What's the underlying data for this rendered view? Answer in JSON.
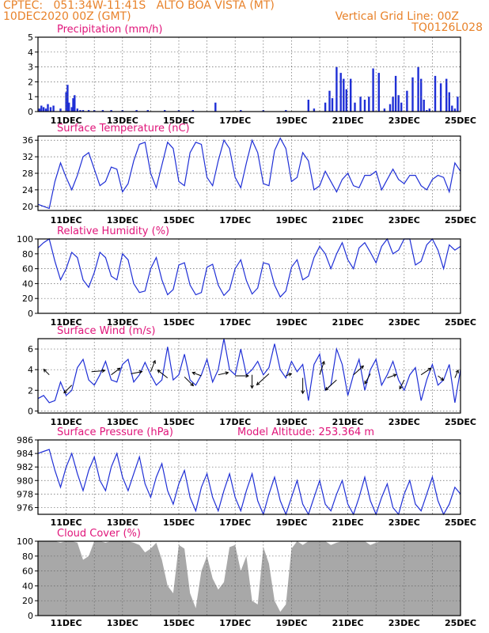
{
  "header": {
    "line1": "CPTEC:   051:34W-11:41S   ALTO BOA VISTA (MT)",
    "line2": "10DEC2020 00Z (GMT)",
    "grid_note": "Vertical Grid Line: 00Z",
    "code": "TQ0126L028"
  },
  "colors": {
    "header": "#e8822a",
    "title": "#e0157a",
    "line": "#1f2fd6",
    "bar": "#1f2fd6",
    "fill": "#a8a8a8",
    "grid": "#666666",
    "arrow": "#000000"
  },
  "x_ticks": [
    "11DEC",
    "13DEC",
    "15DEC",
    "17DEC",
    "19DEC",
    "21DEC",
    "23DEC",
    "25DEC"
  ],
  "chart_data": [
    {
      "type": "bar",
      "title": "Precipitation (mm/h)",
      "ylim": [
        0,
        5
      ],
      "yticks": [
        "0",
        "1",
        "2",
        "3",
        "4",
        "5"
      ],
      "xlim": [
        0,
        15
      ],
      "x": [
        0.05,
        0.12,
        0.2,
        0.28,
        0.35,
        0.45,
        0.55,
        0.8,
        1.0,
        1.05,
        1.1,
        1.2,
        1.25,
        1.3,
        1.4,
        1.5,
        1.6,
        1.8,
        2.0,
        2.3,
        2.6,
        3.0,
        3.5,
        3.9,
        4.5,
        5.0,
        5.5,
        6.3,
        7.2,
        8.0,
        8.8,
        9.6,
        9.8,
        10.2,
        10.35,
        10.45,
        10.6,
        10.75,
        10.85,
        10.95,
        11.1,
        11.25,
        11.45,
        11.6,
        11.75,
        11.9,
        12.1,
        12.3,
        12.5,
        12.6,
        12.7,
        12.8,
        12.9,
        13.1,
        13.3,
        13.5,
        13.6,
        13.7,
        13.8,
        13.9,
        14.1,
        14.3,
        14.5,
        14.6,
        14.7,
        14.8,
        14.9
      ],
      "values": [
        0.2,
        0.4,
        0.3,
        0.2,
        0.5,
        0.3,
        0.4,
        0.2,
        1.3,
        1.8,
        0.6,
        0.3,
        0.9,
        1.1,
        0.2,
        0.1,
        0.1,
        0.1,
        0.1,
        0.1,
        0.1,
        0.1,
        0.1,
        0.1,
        0.1,
        0.1,
        0.1,
        0.6,
        0.1,
        0.1,
        0.1,
        0.8,
        0.2,
        0.6,
        1.4,
        0.9,
        3.0,
        2.6,
        2.2,
        1.5,
        2.2,
        0.6,
        1.0,
        0.8,
        1.0,
        2.9,
        2.6,
        0.2,
        0.5,
        1.0,
        2.4,
        1.1,
        0.6,
        1.4,
        2.3,
        3.0,
        2.2,
        0.8,
        0.1,
        0.2,
        2.4,
        1.9,
        2.2,
        1.3,
        0.4,
        0.2,
        1.0
      ]
    },
    {
      "type": "line",
      "title": "Surface Temperature (nC)",
      "ylim": [
        19,
        37
      ],
      "yticks": [
        "20",
        "24",
        "28",
        "32",
        "36"
      ],
      "xlim": [
        0,
        15
      ],
      "x": [
        0,
        0.2,
        0.4,
        0.6,
        0.8,
        1.0,
        1.2,
        1.4,
        1.6,
        1.8,
        2.0,
        2.2,
        2.4,
        2.6,
        2.8,
        3.0,
        3.2,
        3.4,
        3.6,
        3.8,
        4.0,
        4.2,
        4.4,
        4.6,
        4.8,
        5.0,
        5.2,
        5.4,
        5.6,
        5.8,
        6.0,
        6.2,
        6.4,
        6.6,
        6.8,
        7.0,
        7.2,
        7.4,
        7.6,
        7.8,
        8.0,
        8.2,
        8.4,
        8.6,
        8.8,
        9.0,
        9.2,
        9.4,
        9.6,
        9.8,
        10.0,
        10.2,
        10.4,
        10.6,
        10.8,
        11.0,
        11.2,
        11.4,
        11.6,
        11.8,
        12.0,
        12.2,
        12.4,
        12.6,
        12.8,
        13.0,
        13.2,
        13.4,
        13.6,
        13.8,
        14.0,
        14.2,
        14.4,
        14.6,
        14.8,
        15.0
      ],
      "values": [
        20.5,
        20,
        19.5,
        26,
        30.5,
        27,
        24,
        27.5,
        32,
        33,
        29,
        25,
        26,
        29.5,
        29,
        23.5,
        25.5,
        31,
        35,
        35.5,
        28,
        24.5,
        30,
        35.5,
        34,
        26,
        25,
        33,
        35.5,
        35,
        27,
        25,
        31,
        36,
        34,
        27,
        24.5,
        30.5,
        36,
        33,
        25.5,
        25,
        33.5,
        36.5,
        34,
        26,
        27,
        33,
        31,
        24,
        25,
        28.5,
        26,
        23.5,
        26.5,
        28,
        25,
        24.5,
        27.5,
        27.5,
        28.5,
        24,
        26.5,
        29,
        26.5,
        25.5,
        27.5,
        27.5,
        25,
        24,
        26.5,
        27.5,
        27,
        23.5,
        30.5,
        28.5
      ]
    },
    {
      "type": "line",
      "title": "Relative Humidity (%)",
      "ylim": [
        0,
        100
      ],
      "yticks": [
        "0",
        "20",
        "40",
        "60",
        "80",
        "100"
      ],
      "xlim": [
        0,
        15
      ],
      "x": [
        0,
        0.2,
        0.4,
        0.6,
        0.8,
        1.0,
        1.2,
        1.4,
        1.6,
        1.8,
        2.0,
        2.2,
        2.4,
        2.6,
        2.8,
        3.0,
        3.2,
        3.4,
        3.6,
        3.8,
        4.0,
        4.2,
        4.4,
        4.6,
        4.8,
        5.0,
        5.2,
        5.4,
        5.6,
        5.8,
        6.0,
        6.2,
        6.4,
        6.6,
        6.8,
        7.0,
        7.2,
        7.4,
        7.6,
        7.8,
        8.0,
        8.2,
        8.4,
        8.6,
        8.8,
        9.0,
        9.2,
        9.4,
        9.6,
        9.8,
        10.0,
        10.2,
        10.4,
        10.6,
        10.8,
        11.0,
        11.2,
        11.4,
        11.6,
        11.8,
        12.0,
        12.2,
        12.4,
        12.6,
        12.8,
        13.0,
        13.2,
        13.4,
        13.6,
        13.8,
        14.0,
        14.2,
        14.4,
        14.6,
        14.8,
        15.0
      ],
      "values": [
        88,
        95,
        100,
        70,
        45,
        60,
        82,
        75,
        45,
        35,
        55,
        82,
        75,
        50,
        45,
        80,
        72,
        40,
        28,
        30,
        60,
        75,
        45,
        25,
        32,
        65,
        68,
        38,
        25,
        28,
        62,
        66,
        38,
        24,
        32,
        60,
        72,
        44,
        26,
        34,
        68,
        66,
        38,
        22,
        30,
        62,
        72,
        45,
        50,
        75,
        90,
        80,
        60,
        80,
        95,
        72,
        60,
        88,
        95,
        82,
        68,
        90,
        100,
        80,
        85,
        100,
        100,
        65,
        70,
        92,
        100,
        85,
        60,
        92,
        85,
        90
      ]
    },
    {
      "type": "line",
      "title": "Surface Wind (m/s)",
      "ylim": [
        -0.2,
        7
      ],
      "yticks": [
        "0",
        "2",
        "4",
        "6"
      ],
      "xlim": [
        0,
        15
      ],
      "x": [
        0,
        0.2,
        0.4,
        0.6,
        0.8,
        1.0,
        1.2,
        1.4,
        1.6,
        1.8,
        2.0,
        2.2,
        2.4,
        2.6,
        2.8,
        3.0,
        3.2,
        3.4,
        3.6,
        3.8,
        4.0,
        4.2,
        4.4,
        4.6,
        4.8,
        5.0,
        5.2,
        5.4,
        5.6,
        5.8,
        6.0,
        6.2,
        6.4,
        6.6,
        6.8,
        7.0,
        7.2,
        7.4,
        7.6,
        7.8,
        8.0,
        8.2,
        8.4,
        8.6,
        8.8,
        9.0,
        9.2,
        9.4,
        9.6,
        9.8,
        10.0,
        10.2,
        10.4,
        10.6,
        10.8,
        11.0,
        11.2,
        11.4,
        11.6,
        11.8,
        12.0,
        12.2,
        12.4,
        12.6,
        12.8,
        13.0,
        13.2,
        13.4,
        13.6,
        13.8,
        14.0,
        14.2,
        14.4,
        14.6,
        14.8,
        15.0
      ],
      "values": [
        1.2,
        1.5,
        0.8,
        1.0,
        2.8,
        1.5,
        2.0,
        4.2,
        5.0,
        3.0,
        2.5,
        3.5,
        4.8,
        3.0,
        2.8,
        4.5,
        5.0,
        2.8,
        3.5,
        4.7,
        3.5,
        2.5,
        3.0,
        6.2,
        3.0,
        3.5,
        5.5,
        3.0,
        2.5,
        3.5,
        5.0,
        2.8,
        4.0,
        7.0,
        4.0,
        3.5,
        6.0,
        3.5,
        4.0,
        4.8,
        3.5,
        4.2,
        6.5,
        4.0,
        3.2,
        4.8,
        3.8,
        4.5,
        1.0,
        4.5,
        5.5,
        2.0,
        2.5,
        6.0,
        4.5,
        1.5,
        3.5,
        5.0,
        2.0,
        4.0,
        5.0,
        2.5,
        3.5,
        4.8,
        3.0,
        2.0,
        3.5,
        4.2,
        1.0,
        3.0,
        4.5,
        2.5,
        3.0,
        4.5,
        0.8,
        4.0
      ],
      "wind_vectors": {
        "x": [
          0.4,
          1.2,
          1.9,
          2.6,
          3.3,
          4.0,
          4.6,
          5.2,
          5.8,
          6.4,
          7.0,
          7.6,
          8.2,
          8.8,
          9.4,
          10.0,
          10.6,
          11.2,
          11.8,
          12.4,
          13.0,
          13.6,
          14.2,
          14.8
        ],
        "y": [
          3.5,
          2.5,
          3.8,
          3.5,
          3.6,
          3.8,
          3.2,
          3.3,
          3.4,
          3.5,
          3.4,
          3.5,
          3.6,
          3.4,
          3.2,
          3.5,
          3.0,
          3.5,
          3.6,
          3.2,
          3.0,
          3.5,
          3.4,
          3.2
        ],
        "u": [
          -0.5,
          -0.7,
          1.2,
          0.8,
          1.0,
          0.4,
          -0.9,
          0.8,
          -0.8,
          0.9,
          1.2,
          0.0,
          -1.1,
          0.5,
          0.0,
          0.4,
          -1.0,
          0.9,
          -0.5,
          0.8,
          -0.4,
          0.9,
          0.5,
          0.3
        ],
        "v": [
          0.5,
          -0.7,
          0.1,
          0.6,
          0.2,
          1.0,
          0.7,
          -0.8,
          0.3,
          0.2,
          0.0,
          -1.2,
          -1.0,
          0.2,
          -1.4,
          1.2,
          -0.9,
          0.8,
          -0.9,
          0.3,
          -0.8,
          0.6,
          -0.4,
          0.7
        ]
      }
    },
    {
      "type": "line",
      "title": "Surface Pressure (hPa)",
      "annotation": "Model Altitude: 253.364 m",
      "ylim": [
        975,
        986
      ],
      "yticks": [
        "976",
        "978",
        "980",
        "982",
        "984",
        "986"
      ],
      "xlim": [
        0,
        15
      ],
      "x": [
        0,
        0.2,
        0.4,
        0.6,
        0.8,
        1.0,
        1.2,
        1.4,
        1.6,
        1.8,
        2.0,
        2.2,
        2.4,
        2.6,
        2.8,
        3.0,
        3.2,
        3.4,
        3.6,
        3.8,
        4.0,
        4.2,
        4.4,
        4.6,
        4.8,
        5.0,
        5.2,
        5.4,
        5.6,
        5.8,
        6.0,
        6.2,
        6.4,
        6.6,
        6.8,
        7.0,
        7.2,
        7.4,
        7.6,
        7.8,
        8.0,
        8.2,
        8.4,
        8.6,
        8.8,
        9.0,
        9.2,
        9.4,
        9.6,
        9.8,
        10.0,
        10.2,
        10.4,
        10.6,
        10.8,
        11.0,
        11.2,
        11.4,
        11.6,
        11.8,
        12.0,
        12.2,
        12.4,
        12.6,
        12.8,
        13.0,
        13.2,
        13.4,
        13.6,
        13.8,
        14.0,
        14.2,
        14.4,
        14.6,
        14.8,
        15.0
      ],
      "values": [
        984,
        984.3,
        984.6,
        981.5,
        979,
        982,
        984,
        981,
        978.5,
        981.5,
        983.5,
        980,
        978.5,
        982,
        984,
        980.5,
        978.5,
        981,
        983.5,
        979.5,
        977.5,
        980.5,
        982.5,
        978.5,
        976.5,
        979.5,
        981.5,
        977.5,
        975.5,
        979,
        981,
        977.5,
        975.5,
        978.5,
        981,
        977.5,
        975.5,
        978.5,
        981,
        977,
        975,
        978,
        980.5,
        977,
        975,
        977.5,
        980,
        976.5,
        975,
        977.5,
        980,
        976.5,
        975.5,
        978,
        980,
        976.5,
        975,
        977.5,
        980.5,
        977,
        975,
        977.5,
        979.5,
        976,
        975,
        978,
        980,
        976.5,
        975.5,
        978,
        980.5,
        977,
        975,
        976.5,
        979,
        978
      ]
    },
    {
      "type": "area",
      "title": "Cloud Cover (%)",
      "ylim": [
        0,
        100
      ],
      "yticks": [
        "0",
        "20",
        "40",
        "60",
        "80",
        "100"
      ],
      "xlim": [
        0,
        15
      ],
      "x": [
        0,
        0.2,
        0.4,
        0.6,
        0.8,
        1.0,
        1.2,
        1.4,
        1.6,
        1.8,
        2.0,
        2.2,
        2.4,
        2.6,
        2.8,
        3.0,
        3.2,
        3.4,
        3.6,
        3.8,
        4.0,
        4.2,
        4.4,
        4.6,
        4.8,
        5.0,
        5.2,
        5.4,
        5.6,
        5.8,
        6.0,
        6.2,
        6.4,
        6.6,
        6.8,
        7.0,
        7.2,
        7.4,
        7.6,
        7.8,
        8.0,
        8.2,
        8.4,
        8.6,
        8.8,
        9.0,
        9.2,
        9.4,
        9.6,
        9.8,
        10.0,
        10.2,
        10.4,
        10.6,
        10.8,
        11.0,
        11.2,
        11.4,
        11.6,
        11.8,
        12.0,
        12.2,
        12.4,
        12.6,
        12.8,
        13.0,
        13.2,
        13.4,
        13.6,
        13.8,
        14.0,
        14.2,
        14.4,
        14.6,
        14.8,
        15.0
      ],
      "values": [
        100,
        100,
        100,
        100,
        98,
        100,
        100,
        98,
        75,
        80,
        100,
        100,
        98,
        100,
        100,
        100,
        100,
        98,
        95,
        85,
        90,
        98,
        75,
        40,
        30,
        95,
        90,
        30,
        10,
        60,
        80,
        50,
        35,
        45,
        92,
        95,
        60,
        80,
        20,
        15,
        92,
        70,
        20,
        5,
        15,
        90,
        100,
        95,
        100,
        100,
        100,
        100,
        95,
        98,
        100,
        100,
        100,
        100,
        100,
        95,
        98,
        100,
        100,
        100,
        100,
        100,
        100,
        100,
        100,
        100,
        100,
        100,
        100,
        100,
        100,
        100
      ]
    }
  ]
}
